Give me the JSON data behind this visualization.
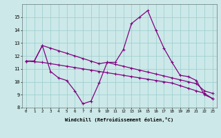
{
  "xlabel": "Windchill (Refroidissement éolien,°C)",
  "bg_color": "#cce8e8",
  "grid_color": "#99cccc",
  "line_color": "#800080",
  "x_hours": [
    0,
    1,
    2,
    3,
    4,
    5,
    6,
    7,
    8,
    9,
    10,
    11,
    12,
    13,
    14,
    15,
    16,
    17,
    18,
    19,
    20,
    21,
    22,
    23
  ],
  "series1": [
    11.6,
    11.6,
    12.8,
    10.8,
    10.3,
    10.1,
    9.3,
    8.3,
    8.5,
    9.9,
    11.5,
    11.5,
    12.5,
    14.5,
    15.0,
    15.5,
    14.0,
    12.6,
    11.5,
    10.5,
    10.4,
    10.1,
    9.0,
    8.7
  ],
  "series2": [
    11.6,
    11.6,
    12.8,
    12.6,
    12.4,
    12.2,
    12.0,
    11.8,
    11.6,
    11.4,
    11.5,
    11.35,
    11.2,
    11.05,
    10.9,
    10.75,
    10.6,
    10.45,
    10.3,
    10.15,
    10.0,
    9.85,
    9.3,
    9.1
  ],
  "series3": [
    11.6,
    11.55,
    11.5,
    11.4,
    11.3,
    11.2,
    11.1,
    11.0,
    10.9,
    10.8,
    10.7,
    10.6,
    10.5,
    10.4,
    10.3,
    10.2,
    10.1,
    10.0,
    9.9,
    9.7,
    9.5,
    9.3,
    9.1,
    8.7
  ],
  "ylim": [
    8,
    16
  ],
  "xlim": [
    -0.5,
    23.5
  ],
  "yticks": [
    8,
    9,
    10,
    11,
    12,
    13,
    14,
    15
  ],
  "xticks": [
    0,
    1,
    2,
    3,
    4,
    5,
    6,
    7,
    8,
    9,
    10,
    11,
    12,
    13,
    14,
    15,
    16,
    17,
    18,
    19,
    20,
    21,
    22,
    23
  ]
}
